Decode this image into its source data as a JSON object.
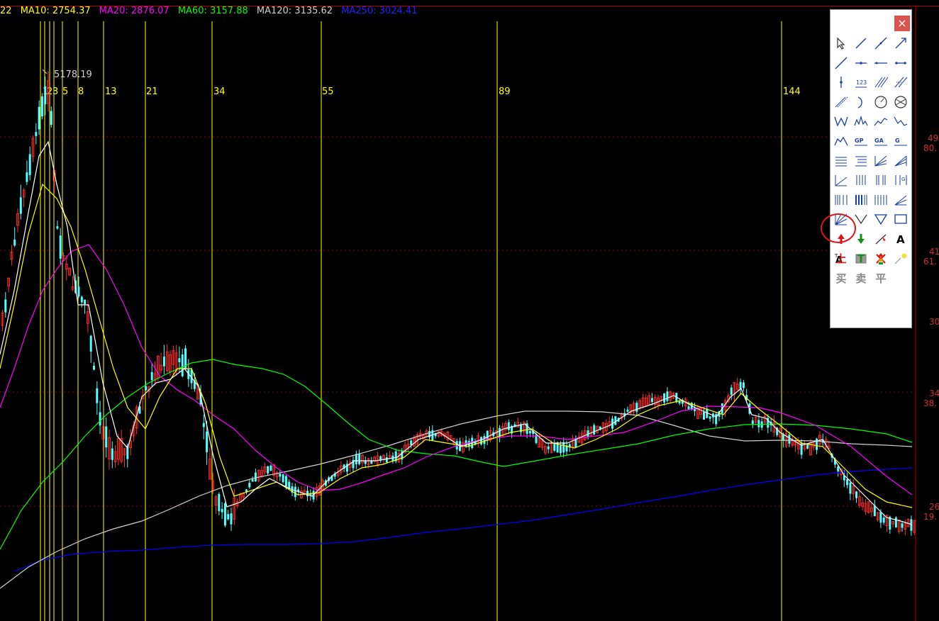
{
  "ma_bar": {
    "prefix": "22",
    "items": [
      {
        "label": "MA10: 2754.37",
        "color": "#ffff00"
      },
      {
        "label": "MA20: 2876.07",
        "color": "#ff00ff"
      },
      {
        "label": "MA60: 3157.88",
        "color": "#00ff00"
      },
      {
        "label": "MA120: 3135.62",
        "color": "#cfcfcf"
      },
      {
        "label": "MA250: 3024.41",
        "color": "#0000ff"
      }
    ]
  },
  "chart_data": {
    "type": "line",
    "peak_label": "5178.19",
    "fibonacci_lines": [
      "1",
      "2",
      "3",
      "5",
      "8",
      "13",
      "21",
      "34",
      "55",
      "89",
      "144"
    ],
    "right_axis_labels": [
      "49",
      "80.",
      "41",
      "61.",
      "30",
      "34",
      "38.",
      "26",
      "19."
    ],
    "series_colors": {
      "price": "#54ffff",
      "ma5": "#ffffff",
      "ma10": "#ffff00",
      "ma20": "#ff00ff",
      "ma60": "#00ff00",
      "ma120": "#cfcfcf",
      "ma250": "#0000ff"
    }
  },
  "toolbox": {
    "close": "×",
    "text_tools": [
      "上",
      "T",
      "买",
      "卖",
      "平",
      "A"
    ]
  }
}
